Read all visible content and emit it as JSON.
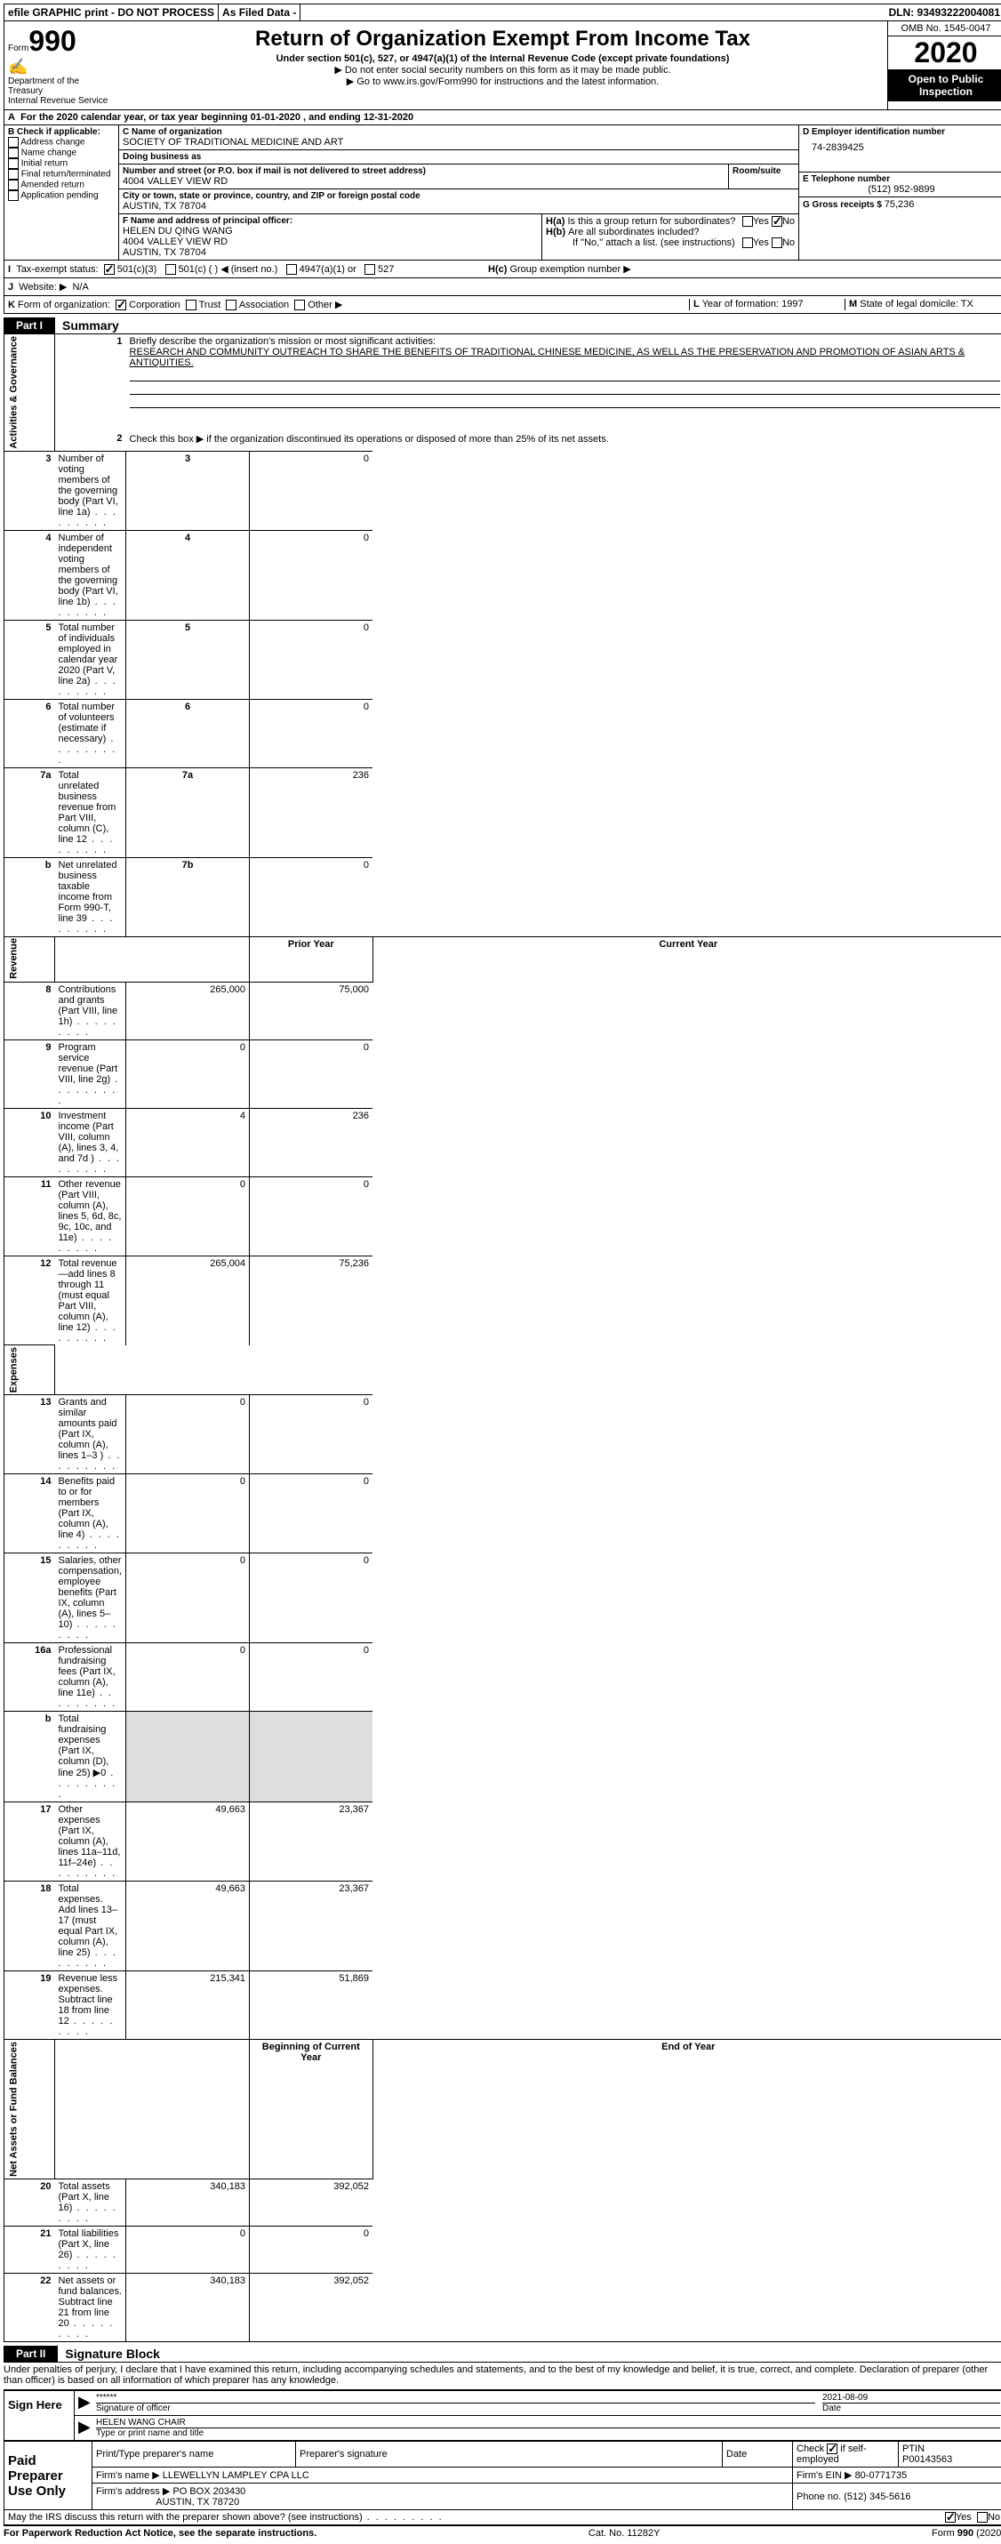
{
  "topbar": {
    "efile": "efile GRAPHIC print - DO NOT PROCESS",
    "asfiled": "As Filed Data -",
    "dln": "DLN: 93493222004081"
  },
  "header": {
    "form_prefix": "Form",
    "form_num": "990",
    "dept": "Department of the Treasury\nInternal Revenue Service",
    "title": "Return of Organization Exempt From Income Tax",
    "sub1": "Under section 501(c), 527, or 4947(a)(1) of the Internal Revenue Code (except private foundations)",
    "sub2": "▶ Do not enter social security numbers on this form as it may be made public.",
    "sub3_pre": "▶ Go to ",
    "sub3_link": "www.irs.gov/Form990",
    "sub3_post": " for instructions and the latest information.",
    "omb": "OMB No. 1545-0047",
    "year": "2020",
    "open": "Open to Public Inspection"
  },
  "rowA": {
    "prefix": "A",
    "text": "For the 2020 calendar year, or tax year beginning 01-01-2020   , and ending 12-31-2020"
  },
  "colB": {
    "label": "B Check if applicable:",
    "opts": [
      "Address change",
      "Name change",
      "Initial return",
      "Final return/terminated",
      "Amended return",
      "Application pending"
    ]
  },
  "colC": {
    "name_label": "C Name of organization",
    "name": "SOCIETY OF TRADITIONAL MEDICINE AND ART",
    "dba_label": "Doing business as",
    "dba": "",
    "street_label": "Number and street (or P.O. box if mail is not delivered to street address)",
    "street": "4004 VALLEY VIEW RD",
    "room_label": "Room/suite",
    "room": "",
    "city_label": "City or town, state or province, country, and ZIP or foreign postal code",
    "city": "AUSTIN, TX  78704",
    "f_label": "F  Name and address of principal officer:",
    "f_name": "HELEN DU QING WANG",
    "f_street": "4004 VALLEY VIEW RD",
    "f_city": "AUSTIN, TX  78704"
  },
  "colD": {
    "ein_label": "D Employer identification number",
    "ein": "74-2839425",
    "tel_label": "E Telephone number",
    "tel": "(512) 952-9899",
    "gross_label": "G Gross receipts $ ",
    "gross": "75,236"
  },
  "colH": {
    "ha_label": "H(a)",
    "ha_text": "Is this a group return for subordinates?",
    "hb_label": "H(b)",
    "hb_text": "Are all subordinates included?",
    "hb_note": "If \"No,\" attach a list. (see instructions)",
    "hc_label": "H(c)",
    "hc_text": "Group exemption number ▶",
    "yes": "Yes",
    "no": "No"
  },
  "rowI": {
    "label": "I",
    "text": "Tax-exempt status:",
    "opt1": "501(c)(3)",
    "opt2": "501(c) (   ) ◀ (insert no.)",
    "opt3": "4947(a)(1) or",
    "opt4": "527"
  },
  "rowJ": {
    "label": "J",
    "text": "Website: ▶",
    "val": "N/A"
  },
  "rowK": {
    "label": "K",
    "text": "Form of organization:",
    "opts": [
      "Corporation",
      "Trust",
      "Association",
      "Other ▶"
    ]
  },
  "rowL": {
    "label": "L",
    "text": "Year of formation: ",
    "val": "1997"
  },
  "rowM": {
    "label": "M",
    "text": "State of legal domicile: ",
    "val": "TX"
  },
  "part1": {
    "tab": "Part I",
    "title": "Summary",
    "sections": {
      "gov": "Activities & Governance",
      "rev": "Revenue",
      "exp": "Expenses",
      "net": "Net Assets or Fund Balances"
    },
    "l1_label": "1",
    "l1_text": "Briefly describe the organization's mission or most significant activities:",
    "l1_val": "RESEARCH AND COMMUNITY OUTREACH TO SHARE THE BENEFITS OF TRADITIONAL CHINESE MEDICINE, AS WELL AS THE PRESERVATION AND PROMOTION OF ASIAN ARTS & ANTIQUITIES.",
    "l2": "Check this box ▶      if the organization discontinued its operations or disposed of more than 25% of its net assets.",
    "lines_gov": [
      {
        "n": "3",
        "t": "Number of voting members of the governing body (Part VI, line 1a)",
        "ref": "3",
        "v": "0"
      },
      {
        "n": "4",
        "t": "Number of independent voting members of the governing body (Part VI, line 1b)",
        "ref": "4",
        "v": "0"
      },
      {
        "n": "5",
        "t": "Total number of individuals employed in calendar year 2020 (Part V, line 2a)",
        "ref": "5",
        "v": "0"
      },
      {
        "n": "6",
        "t": "Total number of volunteers (estimate if necessary)",
        "ref": "6",
        "v": "0"
      },
      {
        "n": "7a",
        "t": "Total unrelated business revenue from Part VIII, column (C), line 12",
        "ref": "7a",
        "v": "236"
      },
      {
        "n": "b",
        "t": "Net unrelated business taxable income from Form 990-T, line 39",
        "ref": "7b",
        "v": "0"
      }
    ],
    "col_prior": "Prior Year",
    "col_current": "Current Year",
    "lines_rev": [
      {
        "n": "8",
        "t": "Contributions and grants (Part VIII, line 1h)",
        "p": "265,000",
        "c": "75,000"
      },
      {
        "n": "9",
        "t": "Program service revenue (Part VIII, line 2g)",
        "p": "0",
        "c": "0"
      },
      {
        "n": "10",
        "t": "Investment income (Part VIII, column (A), lines 3, 4, and 7d )",
        "p": "4",
        "c": "236"
      },
      {
        "n": "11",
        "t": "Other revenue (Part VIII, column (A), lines 5, 6d, 8c, 9c, 10c, and 11e)",
        "p": "0",
        "c": "0"
      },
      {
        "n": "12",
        "t": "Total revenue—add lines 8 through 11 (must equal Part VIII, column (A), line 12)",
        "p": "265,004",
        "c": "75,236"
      }
    ],
    "lines_exp": [
      {
        "n": "13",
        "t": "Grants and similar amounts paid (Part IX, column (A), lines 1–3 )",
        "p": "0",
        "c": "0"
      },
      {
        "n": "14",
        "t": "Benefits paid to or for members (Part IX, column (A), line 4)",
        "p": "0",
        "c": "0"
      },
      {
        "n": "15",
        "t": "Salaries, other compensation, employee benefits (Part IX, column (A), lines 5–10)",
        "p": "0",
        "c": "0"
      },
      {
        "n": "16a",
        "t": "Professional fundraising fees (Part IX, column (A), line 11e)",
        "p": "0",
        "c": "0"
      },
      {
        "n": "b",
        "t": "Total fundraising expenses (Part IX, column (D), line 25) ▶0",
        "p": "",
        "c": "",
        "gray": true
      },
      {
        "n": "17",
        "t": "Other expenses (Part IX, column (A), lines 11a–11d, 11f–24e)",
        "p": "49,663",
        "c": "23,367"
      },
      {
        "n": "18",
        "t": "Total expenses. Add lines 13–17 (must equal Part IX, column (A), line 25)",
        "p": "49,663",
        "c": "23,367"
      },
      {
        "n": "19",
        "t": "Revenue less expenses. Subtract line 18 from line 12",
        "p": "215,341",
        "c": "51,869"
      }
    ],
    "col_begin": "Beginning of Current Year",
    "col_end": "End of Year",
    "lines_net": [
      {
        "n": "20",
        "t": "Total assets (Part X, line 16)",
        "p": "340,183",
        "c": "392,052"
      },
      {
        "n": "21",
        "t": "Total liabilities (Part X, line 26)",
        "p": "0",
        "c": "0"
      },
      {
        "n": "22",
        "t": "Net assets or fund balances. Subtract line 21 from line 20",
        "p": "340,183",
        "c": "392,052"
      }
    ]
  },
  "part2": {
    "tab": "Part II",
    "title": "Signature Block",
    "perjury": "Under penalties of perjury, I declare that I have examined this return, including accompanying schedules and statements, and to the best of my knowledge and belief, it is true, correct, and complete. Declaration of preparer (other than officer) is based on all information of which preparer has any knowledge.",
    "sign_here": "Sign Here",
    "stars": "******",
    "sig_officer": "Signature of officer",
    "date": "2021-08-09",
    "date_label": "Date",
    "name_title": "HELEN WANG CHAIR",
    "name_title_label": "Type or print name and title",
    "paid": "Paid Preparer Use Only",
    "prep_name_label": "Print/Type preparer's name",
    "prep_sig_label": "Preparer's signature",
    "prep_date_label": "Date",
    "check_self": "Check        if self-employed",
    "ptin_label": "PTIN",
    "ptin": "P00143563",
    "firm_name_label": "Firm's name    ▶ ",
    "firm_name": "LLEWELLYN LAMPLEY CPA LLC",
    "firm_ein_label": "Firm's EIN ▶ ",
    "firm_ein": "80-0771735",
    "firm_addr_label": "Firm's address ▶ ",
    "firm_addr1": "PO BOX 203430",
    "firm_addr2": "AUSTIN, TX  78720",
    "phone_label": "Phone no. ",
    "phone": "(512) 345-5616",
    "discuss": "May the IRS discuss this return with the preparer shown above? (see instructions)",
    "yes": "Yes",
    "no": "No"
  },
  "footer": {
    "left": "For Paperwork Reduction Act Notice, see the separate instructions.",
    "center": "Cat. No. 11282Y",
    "right_pre": "Form ",
    "right_form": "990",
    "right_post": " (2020)"
  }
}
